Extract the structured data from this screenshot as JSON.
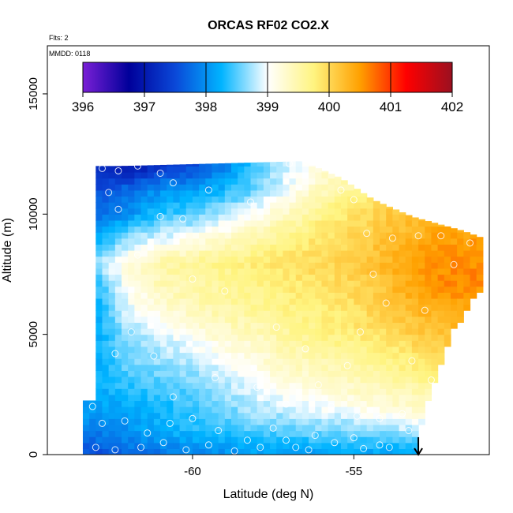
{
  "chart_data": {
    "type": "heatmap",
    "title": "ORCAS RF02 CO2.X",
    "flights_note": "Flts: 2",
    "date_note": "MMDD: 0118",
    "xlabel": "Latitude (deg N)",
    "ylabel": "Altitude (m)",
    "xlim": [
      -64.5,
      -50.8
    ],
    "ylim": [
      0,
      17000
    ],
    "x_ticks": [
      {
        "value": -60,
        "label": "-60"
      },
      {
        "value": -55,
        "label": "-55"
      }
    ],
    "y_ticks": [
      {
        "value": 0,
        "label": "0"
      },
      {
        "value": 5000,
        "label": "5000"
      },
      {
        "value": 10000,
        "label": "10000"
      },
      {
        "value": 15000,
        "label": "15000"
      }
    ],
    "colorbar": {
      "min": 396,
      "max": 402,
      "ticks": [
        {
          "value": 396,
          "label": "396"
        },
        {
          "value": 397,
          "label": "397"
        },
        {
          "value": 398,
          "label": "398"
        },
        {
          "value": 399,
          "label": "399"
        },
        {
          "value": 400,
          "label": "400"
        },
        {
          "value": 401,
          "label": "401"
        },
        {
          "value": 402,
          "label": "402"
        }
      ],
      "colors": [
        "#7a1fd6",
        "#00009a",
        "#0a48d8",
        "#00b4ff",
        "#ffffff",
        "#fff480",
        "#ffa000",
        "#ff0000",
        "#9a1020"
      ]
    },
    "grid": {
      "lat_start": -63.0,
      "lat_step": 0.2,
      "alt_step": 250,
      "profile_alts": [
        0,
        1000,
        2000,
        3000,
        4000,
        5000,
        6000,
        7000,
        8000,
        9000,
        10000,
        11000,
        12000
      ],
      "profile_lats": [
        -63.0,
        -62.0,
        -61.0,
        -60.0,
        -59.0,
        -58.0,
        -57.0,
        -56.0,
        -55.0,
        -54.0,
        -53.0,
        -52.0
      ],
      "profile_values": [
        [
          397.5,
          397.9,
          398.1,
          398.2,
          398.2,
          398.2,
          398.2,
          398.3,
          398.7,
          398.1,
          397.8,
          397.5,
          397.3
        ],
        [
          397.7,
          398.0,
          398.2,
          398.4,
          398.6,
          398.7,
          398.9,
          399.1,
          399.2,
          398.7,
          398.0,
          397.8,
          396.9
        ],
        [
          397.8,
          398.2,
          398.3,
          398.5,
          398.7,
          398.9,
          399.2,
          399.4,
          399.5,
          398.9,
          398.4,
          398.0,
          397.3
        ],
        [
          397.9,
          398.3,
          398.4,
          398.6,
          398.8,
          399.1,
          399.4,
          399.5,
          399.6,
          399.1,
          398.5,
          398.1,
          397.5
        ],
        [
          398.0,
          398.4,
          398.6,
          398.8,
          399.0,
          399.3,
          399.5,
          399.6,
          399.7,
          399.3,
          398.8,
          398.3,
          397.9
        ],
        [
          398.1,
          398.5,
          398.8,
          399.0,
          399.2,
          399.4,
          399.6,
          399.7,
          399.8,
          399.5,
          399.1,
          398.6,
          398.5
        ],
        [
          398.1,
          398.5,
          398.9,
          399.2,
          399.4,
          399.6,
          399.7,
          399.8,
          399.9,
          399.7,
          399.4,
          399.0,
          398.9
        ],
        [
          398.1,
          398.6,
          399.0,
          399.3,
          399.5,
          399.7,
          399.8,
          399.9,
          400.0,
          399.9,
          399.7,
          399.4,
          399.2
        ],
        [
          398.1,
          398.6,
          399.1,
          399.4,
          399.6,
          399.8,
          399.9,
          400.0,
          400.1,
          400.0,
          399.9,
          399.6,
          399.4
        ],
        [
          398.1,
          398.7,
          399.2,
          399.5,
          399.7,
          399.9,
          400.1,
          400.2,
          400.3,
          400.2,
          400.1,
          400.0,
          399.8
        ],
        [
          398.1,
          398.8,
          399.3,
          399.6,
          399.9,
          400.1,
          400.3,
          400.5,
          400.5,
          400.4,
          400.2,
          400.2,
          400.0
        ],
        [
          398.1,
          398.8,
          399.4,
          399.7,
          400.0,
          400.2,
          400.4,
          400.6,
          400.6,
          400.5,
          400.3,
          400.2,
          400.0
        ]
      ],
      "domain_top": [
        {
          "lat": -63.0,
          "alt": 12000
        },
        {
          "lat": -62.2,
          "alt": 12000
        },
        {
          "lat": -56.6,
          "alt": 12200
        },
        {
          "lat": -55.4,
          "alt": 11500
        },
        {
          "lat": -54.4,
          "alt": 10600
        },
        {
          "lat": -53.2,
          "alt": 9900
        },
        {
          "lat": -51.6,
          "alt": 9300
        },
        {
          "lat": -51.0,
          "alt": 9000
        }
      ],
      "domain_bottom": [
        {
          "lat": -63.0,
          "alt": 0
        },
        {
          "lat": -53.1,
          "alt": 0
        },
        {
          "lat": -53.0,
          "alt": 900
        },
        {
          "lat": -52.0,
          "alt": 5000
        },
        {
          "lat": -51.0,
          "alt": 7000
        }
      ],
      "left_edge_lat": -63.0,
      "left_bottom_lat": -63.4,
      "left_bottom_alt_max": 2200,
      "top_left_lat": -62.2
    },
    "sample_points": [
      {
        "lat": -62.8,
        "alt": 11900
      },
      {
        "lat": -62.3,
        "alt": 11800
      },
      {
        "lat": -61.7,
        "alt": 12000
      },
      {
        "lat": -61.0,
        "alt": 11700
      },
      {
        "lat": -60.6,
        "alt": 11300
      },
      {
        "lat": -59.5,
        "alt": 11000
      },
      {
        "lat": -58.2,
        "alt": 10500
      },
      {
        "lat": -57.0,
        "alt": 12100
      },
      {
        "lat": -56.5,
        "alt": 12200
      },
      {
        "lat": -56.0,
        "alt": 12100
      },
      {
        "lat": -55.4,
        "alt": 11000
      },
      {
        "lat": -55.0,
        "alt": 10600
      },
      {
        "lat": -54.6,
        "alt": 9200
      },
      {
        "lat": -53.8,
        "alt": 9000
      },
      {
        "lat": -53.0,
        "alt": 9100
      },
      {
        "lat": -52.3,
        "alt": 9100
      },
      {
        "lat": -51.4,
        "alt": 8800
      },
      {
        "lat": -62.6,
        "alt": 10900
      },
      {
        "lat": -62.3,
        "alt": 10200
      },
      {
        "lat": -61.0,
        "alt": 9900
      },
      {
        "lat": -60.3,
        "alt": 9800
      },
      {
        "lat": -61.7,
        "alt": 8300
      },
      {
        "lat": -60.0,
        "alt": 7300
      },
      {
        "lat": -59.0,
        "alt": 6800
      },
      {
        "lat": -57.4,
        "alt": 5300
      },
      {
        "lat": -56.5,
        "alt": 4400
      },
      {
        "lat": -55.2,
        "alt": 3700
      },
      {
        "lat": -54.8,
        "alt": 5100
      },
      {
        "lat": -54.4,
        "alt": 7500
      },
      {
        "lat": -54.0,
        "alt": 6300
      },
      {
        "lat": -53.2,
        "alt": 3900
      },
      {
        "lat": -52.6,
        "alt": 3100
      },
      {
        "lat": -62.4,
        "alt": 4200
      },
      {
        "lat": -61.9,
        "alt": 5100
      },
      {
        "lat": -61.2,
        "alt": 4100
      },
      {
        "lat": -60.6,
        "alt": 2400
      },
      {
        "lat": -59.3,
        "alt": 3200
      },
      {
        "lat": -58.0,
        "alt": 2800
      },
      {
        "lat": -57.1,
        "alt": 2100
      },
      {
        "lat": -56.1,
        "alt": 2900
      },
      {
        "lat": -55.7,
        "alt": 2000
      },
      {
        "lat": -54.9,
        "alt": 1600
      },
      {
        "lat": -54.2,
        "alt": 1500
      },
      {
        "lat": -53.5,
        "alt": 1700
      },
      {
        "lat": -63.1,
        "alt": 2000
      },
      {
        "lat": -62.8,
        "alt": 1300
      },
      {
        "lat": -62.1,
        "alt": 1400
      },
      {
        "lat": -61.4,
        "alt": 900
      },
      {
        "lat": -60.7,
        "alt": 1300
      },
      {
        "lat": -60.0,
        "alt": 1500
      },
      {
        "lat": -59.2,
        "alt": 1000
      },
      {
        "lat": -58.3,
        "alt": 600
      },
      {
        "lat": -57.5,
        "alt": 1100
      },
      {
        "lat": -56.8,
        "alt": 300
      },
      {
        "lat": -56.2,
        "alt": 800
      },
      {
        "lat": -55.0,
        "alt": 700
      },
      {
        "lat": -54.2,
        "alt": 400
      },
      {
        "lat": -53.3,
        "alt": 1000
      },
      {
        "lat": -63.0,
        "alt": 300
      },
      {
        "lat": -62.4,
        "alt": 200
      },
      {
        "lat": -61.6,
        "alt": 300
      },
      {
        "lat": -60.9,
        "alt": 500
      },
      {
        "lat": -60.2,
        "alt": 200
      },
      {
        "lat": -59.5,
        "alt": 400
      },
      {
        "lat": -58.7,
        "alt": 150
      },
      {
        "lat": -57.9,
        "alt": 300
      },
      {
        "lat": -57.1,
        "alt": 600
      },
      {
        "lat": -56.4,
        "alt": 200
      },
      {
        "lat": -55.6,
        "alt": 500
      },
      {
        "lat": -54.7,
        "alt": 250
      },
      {
        "lat": -53.9,
        "alt": 300
      },
      {
        "lat": -52.8,
        "alt": 6000
      },
      {
        "lat": -51.9,
        "alt": 7900
      }
    ],
    "arrow_marker": {
      "lat": -53.0
    }
  }
}
